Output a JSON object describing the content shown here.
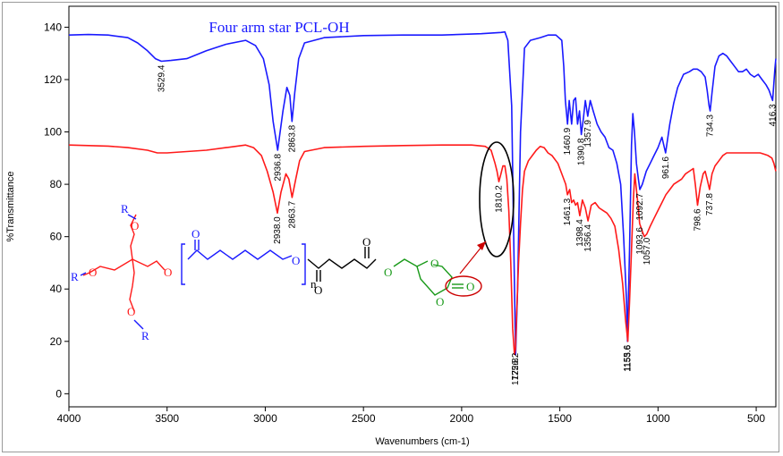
{
  "chart_data": {
    "type": "line",
    "title": "Four arm star PCL-OH",
    "xlabel": "Wavenumbers (cm-1)",
    "ylabel": "%Transmittance",
    "xlim": [
      4000,
      400
    ],
    "ylim": [
      -5,
      148
    ],
    "x_ticks": [
      "4000",
      "3500",
      "3000",
      "2500",
      "2000",
      "1500",
      "1000",
      "500"
    ],
    "y_ticks": [
      "0",
      "20",
      "40",
      "60",
      "80",
      "100",
      "120",
      "140"
    ],
    "grid": false,
    "series": [
      {
        "color": "#1a1aff",
        "points": [
          [
            4000,
            137
          ],
          [
            3900,
            137.2
          ],
          [
            3800,
            137
          ],
          [
            3700,
            136
          ],
          [
            3650,
            134
          ],
          [
            3600,
            131
          ],
          [
            3560,
            128
          ],
          [
            3529.4,
            127
          ],
          [
            3480,
            127.3
          ],
          [
            3400,
            128
          ],
          [
            3300,
            131
          ],
          [
            3200,
            133.5
          ],
          [
            3100,
            135
          ],
          [
            3050,
            133
          ],
          [
            3010,
            128
          ],
          [
            2980,
            118
          ],
          [
            2960,
            104
          ],
          [
            2936.8,
            93
          ],
          [
            2910,
            108
          ],
          [
            2890,
            117
          ],
          [
            2875,
            114
          ],
          [
            2863.8,
            104
          ],
          [
            2850,
            115
          ],
          [
            2830,
            128
          ],
          [
            2800,
            134
          ],
          [
            2700,
            136
          ],
          [
            2500,
            136.8
          ],
          [
            2300,
            137
          ],
          [
            2100,
            137
          ],
          [
            1900,
            137.5
          ],
          [
            1800,
            138
          ],
          [
            1780,
            138.2
          ],
          [
            1765,
            135
          ],
          [
            1745,
            110
          ],
          [
            1733,
            50
          ],
          [
            1725,
            15
          ],
          [
            1715,
            40
          ],
          [
            1700,
            100
          ],
          [
            1680,
            132
          ],
          [
            1650,
            135
          ],
          [
            1600,
            136
          ],
          [
            1560,
            137
          ],
          [
            1520,
            137
          ],
          [
            1490,
            135
          ],
          [
            1480,
            125
          ],
          [
            1472,
            112
          ],
          [
            1460.9,
            103
          ],
          [
            1452,
            112
          ],
          [
            1440,
            103
          ],
          [
            1430,
            112
          ],
          [
            1420,
            113
          ],
          [
            1410,
            103
          ],
          [
            1400,
            108
          ],
          [
            1390.8,
            99
          ],
          [
            1380,
            105
          ],
          [
            1370,
            112
          ],
          [
            1357.9,
            106
          ],
          [
            1345,
            112
          ],
          [
            1330,
            108
          ],
          [
            1310,
            103
          ],
          [
            1290,
            100
          ],
          [
            1270,
            98
          ],
          [
            1250,
            94
          ],
          [
            1230,
            93
          ],
          [
            1210,
            88
          ],
          [
            1190,
            80
          ],
          [
            1175,
            60
          ],
          [
            1160,
            35
          ],
          [
            1155.6,
            20
          ],
          [
            1145,
            55
          ],
          [
            1135,
            95
          ],
          [
            1128,
            107
          ],
          [
            1120,
            100
          ],
          [
            1110,
            88
          ],
          [
            1100,
            82
          ],
          [
            1092.7,
            78
          ],
          [
            1080,
            80
          ],
          [
            1060,
            85
          ],
          [
            1040,
            88
          ],
          [
            1020,
            91
          ],
          [
            1000,
            94
          ],
          [
            980,
            98
          ],
          [
            961.6,
            92
          ],
          [
            940,
            103
          ],
          [
            920,
            111
          ],
          [
            900,
            117
          ],
          [
            870,
            122
          ],
          [
            840,
            123
          ],
          [
            820,
            124
          ],
          [
            800,
            124
          ],
          [
            780,
            123
          ],
          [
            760,
            121
          ],
          [
            750,
            116
          ],
          [
            740,
            110
          ],
          [
            734.3,
            108
          ],
          [
            725,
            115
          ],
          [
            710,
            125
          ],
          [
            690,
            129
          ],
          [
            670,
            130
          ],
          [
            650,
            129
          ],
          [
            630,
            127
          ],
          [
            610,
            125
          ],
          [
            590,
            123
          ],
          [
            570,
            123
          ],
          [
            550,
            124
          ],
          [
            530,
            122
          ],
          [
            510,
            121
          ],
          [
            490,
            122
          ],
          [
            470,
            120
          ],
          [
            450,
            118
          ],
          [
            435,
            116
          ],
          [
            416.3,
            112
          ],
          [
            405,
            124
          ],
          [
            400,
            128
          ]
        ]
      },
      {
        "color": "#ff1a1a",
        "points": [
          [
            4000,
            95
          ],
          [
            3800,
            94.6
          ],
          [
            3700,
            94
          ],
          [
            3600,
            93
          ],
          [
            3550,
            92
          ],
          [
            3500,
            92
          ],
          [
            3400,
            92.5
          ],
          [
            3300,
            93
          ],
          [
            3200,
            94
          ],
          [
            3100,
            95
          ],
          [
            3060,
            94
          ],
          [
            3020,
            91
          ],
          [
            2990,
            85
          ],
          [
            2960,
            77
          ],
          [
            2938,
            69
          ],
          [
            2920,
            77
          ],
          [
            2895,
            84
          ],
          [
            2880,
            82
          ],
          [
            2863.7,
            75
          ],
          [
            2845,
            82
          ],
          [
            2825,
            89
          ],
          [
            2800,
            92.5
          ],
          [
            2700,
            94
          ],
          [
            2500,
            94.5
          ],
          [
            2300,
            94.8
          ],
          [
            2100,
            95
          ],
          [
            1950,
            95
          ],
          [
            1880,
            94.5
          ],
          [
            1850,
            93
          ],
          [
            1830,
            88
          ],
          [
            1820,
            85
          ],
          [
            1810.2,
            81
          ],
          [
            1800,
            84
          ],
          [
            1790,
            87
          ],
          [
            1780,
            87
          ],
          [
            1770,
            82
          ],
          [
            1760,
            70
          ],
          [
            1750,
            50
          ],
          [
            1740,
            25
          ],
          [
            1731,
            15
          ],
          [
            1726.2,
            17
          ],
          [
            1720,
            30
          ],
          [
            1710,
            50
          ],
          [
            1700,
            65
          ],
          [
            1690,
            78
          ],
          [
            1680,
            85
          ],
          [
            1660,
            89
          ],
          [
            1640,
            91
          ],
          [
            1620,
            93
          ],
          [
            1600,
            94.5
          ],
          [
            1580,
            94
          ],
          [
            1560,
            92
          ],
          [
            1540,
            91
          ],
          [
            1510,
            88
          ],
          [
            1490,
            84
          ],
          [
            1470,
            80
          ],
          [
            1461.3,
            76
          ],
          [
            1450,
            78
          ],
          [
            1440,
            73
          ],
          [
            1430,
            74
          ],
          [
            1420,
            72
          ],
          [
            1410,
            73
          ],
          [
            1398.4,
            68
          ],
          [
            1385,
            74
          ],
          [
            1370,
            71
          ],
          [
            1356.4,
            66
          ],
          [
            1340,
            72
          ],
          [
            1320,
            73
          ],
          [
            1300,
            71
          ],
          [
            1280,
            70
          ],
          [
            1260,
            69
          ],
          [
            1240,
            67
          ],
          [
            1220,
            64
          ],
          [
            1200,
            55
          ],
          [
            1180,
            42
          ],
          [
            1165,
            28
          ],
          [
            1153.6,
            20
          ],
          [
            1145,
            35
          ],
          [
            1135,
            55
          ],
          [
            1125,
            75
          ],
          [
            1118,
            84
          ],
          [
            1110,
            78
          ],
          [
            1102,
            72
          ],
          [
            1093.6,
            65
          ],
          [
            1080,
            62
          ],
          [
            1070,
            60
          ],
          [
            1057,
            61
          ],
          [
            1040,
            64
          ],
          [
            1020,
            67
          ],
          [
            1000,
            70
          ],
          [
            980,
            73
          ],
          [
            960,
            76
          ],
          [
            940,
            78
          ],
          [
            920,
            80
          ],
          [
            900,
            81
          ],
          [
            880,
            82
          ],
          [
            860,
            84
          ],
          [
            840,
            85
          ],
          [
            820,
            86
          ],
          [
            810,
            80
          ],
          [
            798.6,
            72
          ],
          [
            785,
            79
          ],
          [
            770,
            84
          ],
          [
            760,
            85
          ],
          [
            750,
            82
          ],
          [
            737.8,
            78
          ],
          [
            725,
            84
          ],
          [
            710,
            87
          ],
          [
            690,
            89
          ],
          [
            670,
            91
          ],
          [
            650,
            92
          ],
          [
            630,
            92
          ],
          [
            600,
            92
          ],
          [
            570,
            92
          ],
          [
            540,
            92
          ],
          [
            510,
            92
          ],
          [
            480,
            92
          ],
          [
            460,
            91.5
          ],
          [
            440,
            91
          ],
          [
            420,
            90
          ],
          [
            410,
            88
          ],
          [
            400,
            85
          ]
        ]
      }
    ],
    "peak_labels": [
      {
        "text": "3529.4",
        "x": 3529.4,
        "y": 127,
        "series": 0
      },
      {
        "text": "2936.8",
        "x": 2936.8,
        "y": 93,
        "series": 0
      },
      {
        "text": "2863.8",
        "x": 2863.8,
        "y": 104,
        "series": 0
      },
      {
        "text": "1725.8",
        "x": 1725.8,
        "y": 15,
        "series": 0
      },
      {
        "text": "1460.9",
        "x": 1460.9,
        "y": 103,
        "series": 0
      },
      {
        "text": "1390.8",
        "x": 1390.8,
        "y": 99,
        "series": 0
      },
      {
        "text": "1357.9",
        "x": 1357.9,
        "y": 106,
        "series": 0
      },
      {
        "text": "1155.6",
        "x": 1155.6,
        "y": 20,
        "series": 0
      },
      {
        "text": "1092.7",
        "x": 1092.7,
        "y": 78,
        "series": 0
      },
      {
        "text": "961.6",
        "x": 961.6,
        "y": 92,
        "series": 0
      },
      {
        "text": "734.3",
        "x": 734.3,
        "y": 108,
        "series": 0
      },
      {
        "text": "416.3",
        "x": 416.3,
        "y": 112,
        "series": 0
      },
      {
        "text": "2938.0",
        "x": 2938.0,
        "y": 69,
        "series": 1
      },
      {
        "text": "2863.7",
        "x": 2863.7,
        "y": 75,
        "series": 1
      },
      {
        "text": "1810.2",
        "x": 1810.2,
        "y": 81,
        "series": 1
      },
      {
        "text": "1726.2",
        "x": 1726.2,
        "y": 17,
        "series": 1
      },
      {
        "text": "1461.3",
        "x": 1461.3,
        "y": 76,
        "series": 1
      },
      {
        "text": "1398.4",
        "x": 1398.4,
        "y": 68,
        "series": 1
      },
      {
        "text": "1356.4",
        "x": 1356.4,
        "y": 66,
        "series": 1
      },
      {
        "text": "1153.6",
        "x": 1153.6,
        "y": 20,
        "series": 1
      },
      {
        "text": "1093.6",
        "x": 1093.6,
        "y": 65,
        "series": 1
      },
      {
        "text": "1057.0",
        "x": 1057.0,
        "y": 61,
        "series": 1
      },
      {
        "text": "798.6",
        "x": 798.6,
        "y": 72,
        "series": 1
      },
      {
        "text": "737.8",
        "x": 737.8,
        "y": 78,
        "series": 1
      }
    ],
    "annotations": [
      {
        "type": "ellipse",
        "label": "1810.2 peak highlight",
        "color": "#000000"
      }
    ]
  },
  "structure": {
    "labels": {
      "r_top": "R",
      "r_left": "R",
      "r_bottom": "R",
      "n": "n",
      "o": "O"
    },
    "colors": {
      "core": "#ff1a1a",
      "pcl": "#1a1aff",
      "linker": "#000000",
      "carbonate": "#1a9a1a",
      "highlight": "#cc0000"
    }
  }
}
